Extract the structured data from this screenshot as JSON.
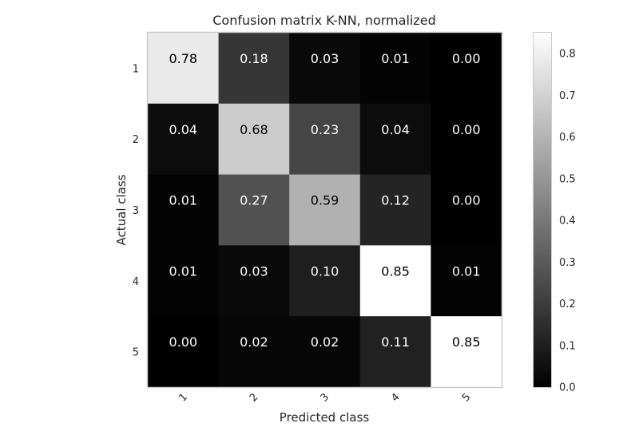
{
  "chart_data": {
    "type": "heatmap",
    "title": "Confusion matrix K-NN, normalized",
    "xlabel": "Predicted class",
    "ylabel": "Actual class",
    "x_categories": [
      "1",
      "2",
      "3",
      "4",
      "5"
    ],
    "y_categories": [
      "1",
      "2",
      "3",
      "4",
      "5"
    ],
    "values": [
      [
        0.78,
        0.18,
        0.03,
        0.01,
        0.0
      ],
      [
        0.04,
        0.68,
        0.23,
        0.04,
        0.0
      ],
      [
        0.01,
        0.27,
        0.59,
        0.12,
        0.0
      ],
      [
        0.01,
        0.03,
        0.1,
        0.85,
        0.01
      ],
      [
        0.0,
        0.02,
        0.02,
        0.11,
        0.85
      ]
    ],
    "value_labels": [
      [
        "0.78",
        "0.18",
        "0.03",
        "0.01",
        "0.00"
      ],
      [
        "0.04",
        "0.68",
        "0.23",
        "0.04",
        "0.00"
      ],
      [
        "0.01",
        "0.27",
        "0.59",
        "0.12",
        "0.00"
      ],
      [
        "0.01",
        "0.03",
        "0.10",
        "0.85",
        "0.01"
      ],
      [
        "0.00",
        "0.02",
        "0.02",
        "0.11",
        "0.85"
      ]
    ],
    "colormap": "gray",
    "color_range": [
      0.0,
      0.85
    ],
    "colorbar_ticks": [
      "0.0",
      "0.1",
      "0.2",
      "0.3",
      "0.4",
      "0.5",
      "0.6",
      "0.7",
      "0.8"
    ],
    "grid": false
  }
}
